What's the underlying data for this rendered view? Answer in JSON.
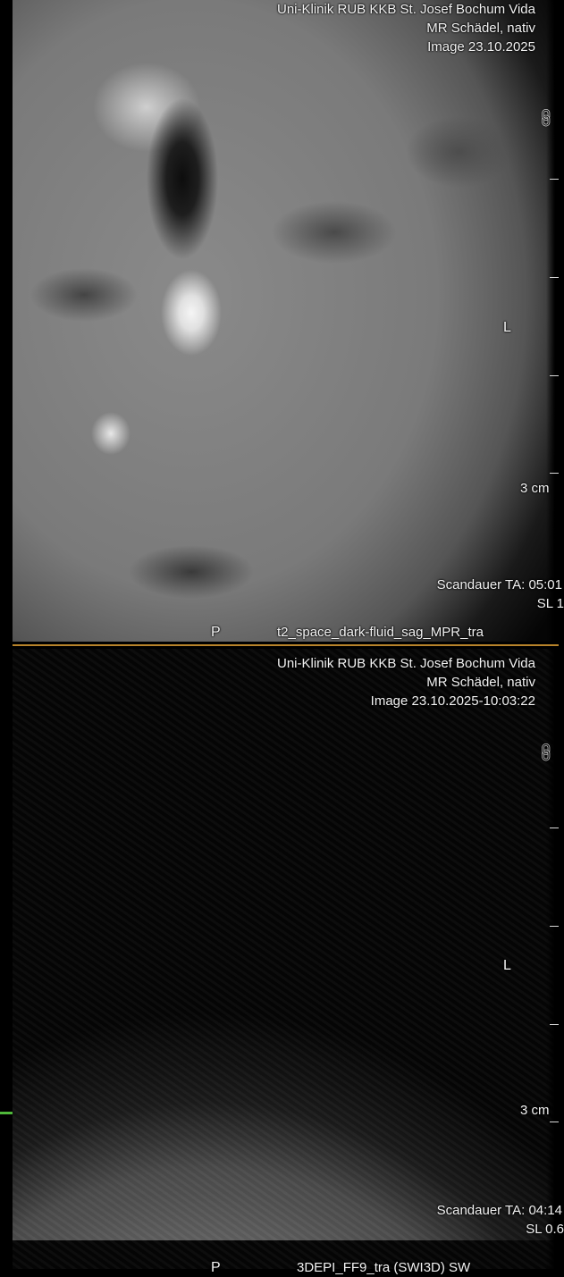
{
  "viewports": [
    {
      "header": [
        "Uni-Klinik RUB KKB St. Josef Bochum Vida",
        "MR Schädel, nativ",
        "Image 23.10.2025"
      ],
      "side_label": "L",
      "bottom_side_label": "P",
      "scale_label": "3 cm",
      "footer": [
        "Scandauer TA: 05:01",
        "SL 1",
        "t2_space_dark-fluid_sag_MPR_tra"
      ],
      "link_icon": "link-icon"
    },
    {
      "header": [
        "Uni-Klinik RUB KKB St. Josef Bochum Vida",
        "MR Schädel, nativ",
        "Image 23.10.2025-10:03:22"
      ],
      "side_label": "L",
      "bottom_side_label": "P",
      "scale_label": "3 cm",
      "footer": [
        "Scandauer TA: 04:14",
        "SL 0.6",
        "3DEPI_FF9_tra (SWI3D) SW"
      ],
      "link_icon": "link-icon"
    }
  ],
  "colors": {
    "divider": "#b8832a",
    "marker": "#4fb83a"
  }
}
